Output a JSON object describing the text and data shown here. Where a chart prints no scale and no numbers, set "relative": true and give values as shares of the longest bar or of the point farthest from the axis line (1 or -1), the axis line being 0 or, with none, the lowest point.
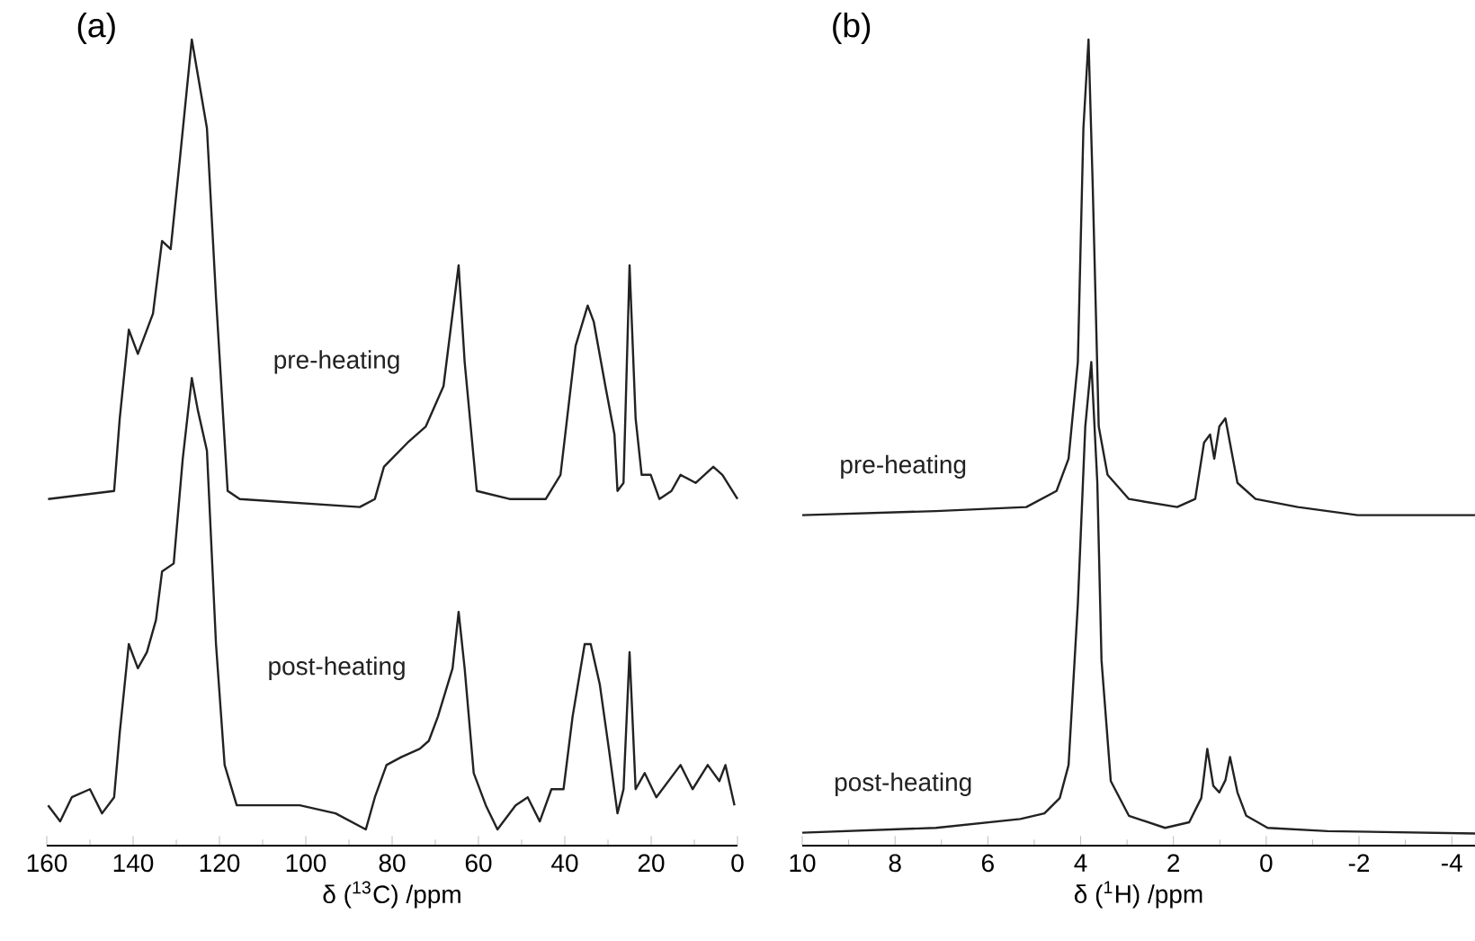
{
  "chart_data": [
    {
      "type": "line",
      "title": "(a)",
      "xlabel": "δ ($^{13}$C) /ppm",
      "xlim": [
        160,
        0
      ],
      "xticks": [
        160,
        140,
        120,
        100,
        80,
        60,
        40,
        20,
        0
      ],
      "relative": true,
      "tick_labels": "x",
      "series": [
        {
          "name": "pre-heating",
          "color": "#222222",
          "x": [
            159.7,
            144.4,
            143.1,
            141.0,
            138.9,
            135.4,
            133.3,
            131.3,
            129.2,
            126.4,
            122.9,
            120.8,
            118.1,
            115.3,
            87.5,
            84.0,
            81.9,
            76.4,
            72.2,
            68.1,
            64.6,
            63.2,
            60.4,
            52.8,
            44.4,
            41.0,
            37.5,
            34.7,
            33.3,
            30.6,
            28.5,
            27.8,
            26.4,
            25.0,
            23.6,
            22.2,
            20.1,
            18.1,
            15.3,
            13.2,
            9.7,
            5.6,
            3.5,
            0.0
          ],
          "values": [
            0.43,
            0.44,
            0.53,
            0.64,
            0.61,
            0.66,
            0.75,
            0.74,
            0.85,
            1.0,
            0.89,
            0.68,
            0.44,
            0.43,
            0.42,
            0.43,
            0.47,
            0.5,
            0.52,
            0.57,
            0.72,
            0.6,
            0.44,
            0.43,
            0.43,
            0.46,
            0.62,
            0.67,
            0.65,
            0.57,
            0.51,
            0.44,
            0.45,
            0.72,
            0.53,
            0.46,
            0.46,
            0.43,
            0.44,
            0.46,
            0.45,
            0.47,
            0.46,
            0.43
          ]
        },
        {
          "name": "post-heating",
          "color": "#222222",
          "x": [
            159.7,
            156.9,
            154.2,
            150.0,
            147.2,
            144.4,
            143.1,
            141.0,
            138.9,
            136.8,
            134.7,
            133.3,
            130.6,
            128.5,
            126.4,
            125.0,
            122.9,
            120.8,
            118.8,
            116.0,
            108.3,
            101.4,
            93.1,
            86.1,
            84.0,
            81.3,
            77.8,
            73.6,
            71.5,
            69.4,
            66.0,
            64.6,
            63.2,
            61.1,
            58.3,
            55.6,
            51.4,
            48.6,
            45.8,
            43.1,
            40.3,
            38.2,
            35.4,
            34.0,
            31.9,
            29.8,
            27.8,
            26.4,
            25.0,
            23.6,
            21.5,
            18.8,
            13.2,
            10.4,
            6.9,
            4.2,
            2.8,
            0.7
          ],
          "values": [
            0.05,
            0.03,
            0.06,
            0.07,
            0.04,
            0.06,
            0.14,
            0.25,
            0.22,
            0.24,
            0.28,
            0.34,
            0.35,
            0.48,
            0.58,
            0.54,
            0.49,
            0.25,
            0.1,
            0.05,
            0.05,
            0.05,
            0.04,
            0.02,
            0.06,
            0.1,
            0.11,
            0.12,
            0.13,
            0.16,
            0.22,
            0.29,
            0.22,
            0.09,
            0.05,
            0.02,
            0.05,
            0.06,
            0.03,
            0.07,
            0.07,
            0.16,
            0.25,
            0.25,
            0.2,
            0.12,
            0.04,
            0.07,
            0.24,
            0.07,
            0.09,
            0.06,
            0.1,
            0.07,
            0.1,
            0.08,
            0.1,
            0.05
          ]
        }
      ]
    },
    {
      "type": "line",
      "title": "(b)",
      "xlabel": "δ ($^{1}$H) /ppm",
      "xlim": [
        10,
        -4.5
      ],
      "xticks": [
        10,
        8,
        6,
        4,
        2,
        0,
        -2,
        -4
      ],
      "relative": true,
      "tick_labels": "x",
      "series": [
        {
          "name": "pre-heating",
          "color": "#222222",
          "x": [
            10,
            7.12,
            5.17,
            4.52,
            4.26,
            4.06,
            3.94,
            3.83,
            3.74,
            3.61,
            3.42,
            2.96,
            1.92,
            1.53,
            1.34,
            1.21,
            1.12,
            1.01,
            0.88,
            0.75,
            0.62,
            0.23,
            -0.68,
            -1.97,
            -4.5
          ],
          "values": [
            0.41,
            0.415,
            0.42,
            0.44,
            0.48,
            0.6,
            0.89,
            1.0,
            0.82,
            0.52,
            0.46,
            0.43,
            0.42,
            0.43,
            0.5,
            0.51,
            0.48,
            0.52,
            0.53,
            0.49,
            0.45,
            0.43,
            0.42,
            0.41,
            0.41
          ]
        },
        {
          "name": "post-heating",
          "color": "#222222",
          "x": [
            10,
            7.12,
            5.3,
            4.78,
            4.45,
            4.26,
            4.06,
            3.9,
            3.77,
            3.64,
            3.55,
            3.35,
            2.96,
            2.18,
            1.66,
            1.4,
            1.27,
            1.14,
            1.01,
            0.88,
            0.78,
            0.62,
            0.43,
            -0.03,
            -1.32,
            -4.5
          ],
          "values": [
            0.016,
            0.022,
            0.033,
            0.04,
            0.059,
            0.1,
            0.3,
            0.52,
            0.6,
            0.45,
            0.23,
            0.08,
            0.037,
            0.022,
            0.029,
            0.059,
            0.12,
            0.074,
            0.066,
            0.081,
            0.11,
            0.066,
            0.037,
            0.022,
            0.018,
            0.015
          ]
        }
      ]
    }
  ]
}
